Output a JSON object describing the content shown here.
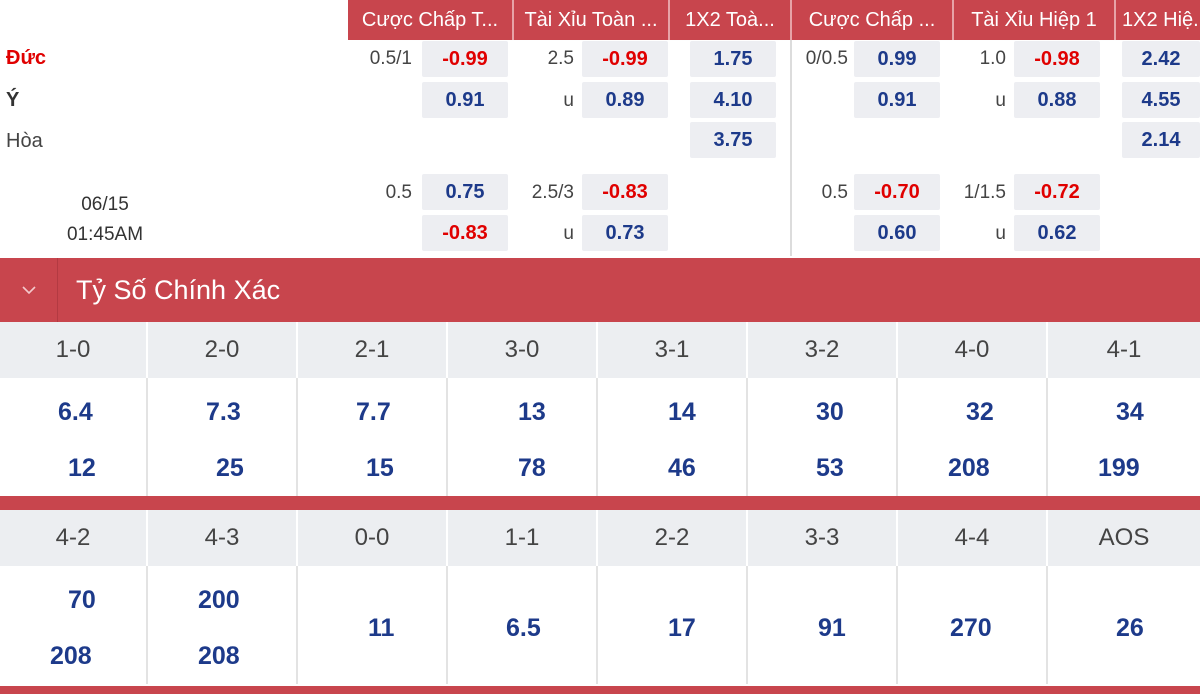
{
  "headers": [
    "Cược Chấp T...",
    "Tài Xỉu Toàn ...",
    "1X2 Toà...",
    "Cược Chấp ...",
    "Tài Xỉu Hiệp 1",
    "1X2 Hiệ..."
  ],
  "teams": {
    "home": "Đức",
    "away": "Ý",
    "draw": "Hòa"
  },
  "match_time": {
    "date": "06/15",
    "time": "01:45AM"
  },
  "main_line": {
    "hdp_line": "0.5/1",
    "hdp_home": "-0.99",
    "hdp_away": "0.91",
    "ou_line": "2.5",
    "ou_over": "-0.99",
    "ou_u": "u",
    "ou_under": "0.89",
    "x12_home": "1.75",
    "x12_away": "4.10",
    "x12_draw": "3.75",
    "h1_hdp_line": "0/0.5",
    "h1_hdp_home": "0.99",
    "h1_hdp_away": "0.91",
    "h1_ou_line": "1.0",
    "h1_ou_over": "-0.98",
    "h1_ou_u": "u",
    "h1_ou_under": "0.88",
    "h1_x12_home": "2.42",
    "h1_x12_away": "4.55",
    "h1_x12_draw": "2.14"
  },
  "alt_line": {
    "hdp_line": "0.5",
    "hdp_home": "0.75",
    "hdp_away": "-0.83",
    "ou_line": "2.5/3",
    "ou_over": "-0.83",
    "ou_u": "u",
    "ou_under": "0.73",
    "h1_hdp_line": "0.5",
    "h1_hdp_home": "-0.70",
    "h1_hdp_away": "0.60",
    "h1_ou_line": "1/1.5",
    "h1_ou_over": "-0.72",
    "h1_ou_u": "u",
    "h1_ou_under": "0.62"
  },
  "section": {
    "title": "Tỷ Số Chính Xác"
  },
  "correct_score": {
    "row1": [
      {
        "score": "1-0",
        "top": "6.4",
        "bottom": "12"
      },
      {
        "score": "2-0",
        "top": "7.3",
        "bottom": "25"
      },
      {
        "score": "2-1",
        "top": "7.7",
        "bottom": "15"
      },
      {
        "score": "3-0",
        "top": "13",
        "bottom": "78"
      },
      {
        "score": "3-1",
        "top": "14",
        "bottom": "46"
      },
      {
        "score": "3-2",
        "top": "30",
        "bottom": "53"
      },
      {
        "score": "4-0",
        "top": "32",
        "bottom": "208"
      },
      {
        "score": "4-1",
        "top": "34",
        "bottom": "199"
      }
    ],
    "row2": [
      {
        "score": "4-2",
        "top": "70",
        "bottom": "208"
      },
      {
        "score": "4-3",
        "top": "200",
        "bottom": "208"
      },
      {
        "score": "0-0",
        "single": "11"
      },
      {
        "score": "1-1",
        "single": "6.5"
      },
      {
        "score": "2-2",
        "single": "17"
      },
      {
        "score": "3-3",
        "single": "91"
      },
      {
        "score": "4-4",
        "single": "270"
      },
      {
        "score": "AOS",
        "single": "26"
      }
    ]
  },
  "colors": {
    "accent": "#c8454d",
    "odds_blue": "#1d3a8a",
    "odds_red": "#e00000",
    "cell_bg": "#edeef2"
  },
  "icons": {
    "section_toggle": "chevron-down-icon"
  }
}
